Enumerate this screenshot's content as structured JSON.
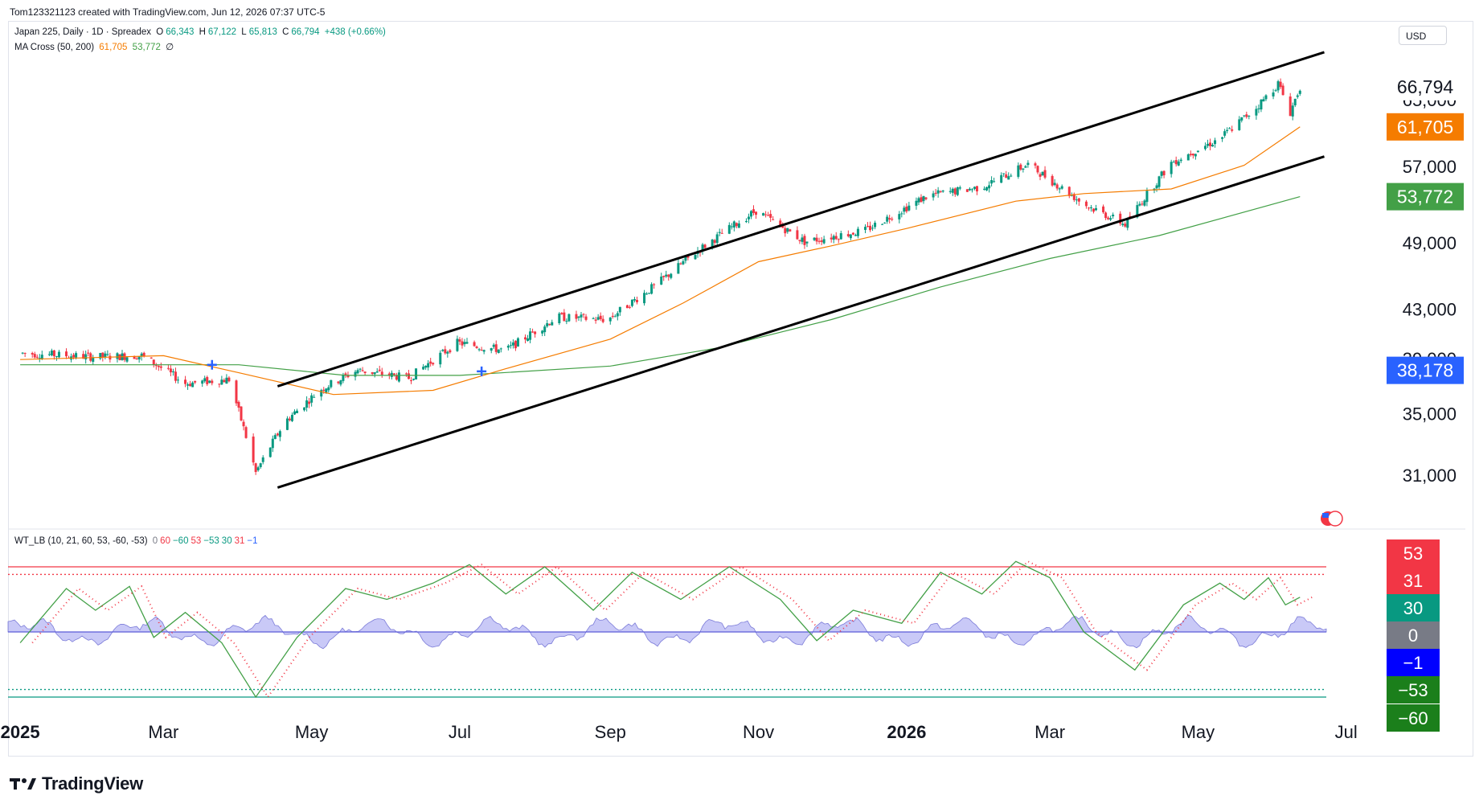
{
  "attribution": "Tom123321123 created with TradingView.com, Jun 12, 2026 07:37 UTC-5",
  "legend": {
    "symbol": "Japan 225, Daily · 1D · Spreadex",
    "o_label": "O",
    "o_value": "66,343",
    "h_label": "H",
    "h_value": "67,122",
    "l_label": "L",
    "l_value": "65,813",
    "c_label": "C",
    "c_value": "66,794",
    "change": "+438 (+0.66%)",
    "ma_title": "MA Cross (50, 200)",
    "ma_fast_value": "61,705",
    "ma_slow_value": "53,772",
    "ma_extra": "∅",
    "wt_title": "WT_LB (10, 21, 60, 53, -60, -53)",
    "wt_values": [
      "0",
      "60",
      "−60",
      "53",
      "−53",
      "30",
      "31",
      "−1"
    ],
    "wt_colors": [
      "#787b86",
      "#f23645",
      "#089981",
      "#f23645",
      "#089981",
      "#089981",
      "#f23645",
      "#2962ff"
    ]
  },
  "currency": "USD",
  "footer_brand": "TradingView",
  "colors": {
    "up": "#089981",
    "down": "#f23645",
    "ma_fast": "#f57c00",
    "ma_slow": "#43a047",
    "channel": "#000000",
    "wt1": "#43a047",
    "wt2": "#f23645",
    "histogram": "#9c9cf0",
    "ob": "#f23645",
    "os": "#089981",
    "cross_marker": "#2962ff"
  },
  "chart_data": [
    {
      "type": "candlestick",
      "title": "Japan 225, Daily",
      "x_axis_labels": [
        "2025",
        "Mar",
        "May",
        "Jul",
        "Sep",
        "Nov",
        "2026",
        "Mar",
        "May",
        "Jul"
      ],
      "y_axis_ticks": [
        31000,
        35000,
        39000,
        43000,
        49000,
        57000,
        65000
      ],
      "y_axis_tick_labels": [
        "31,000",
        "35,000",
        "39,000",
        "43,000",
        "49,000",
        "57,000",
        "65,000"
      ],
      "ylim": [
        29000,
        74000
      ],
      "scale": "log",
      "price_path": [
        [
          "2025-01-01",
          39500
        ],
        [
          "2025-02-01",
          39200
        ],
        [
          "2025-02-20",
          39300
        ],
        [
          "2025-03-10",
          37200
        ],
        [
          "2025-03-28",
          37500
        ],
        [
          "2025-04-08",
          31200
        ],
        [
          "2025-04-20",
          34500
        ],
        [
          "2025-05-05",
          36800
        ],
        [
          "2025-05-20",
          38200
        ],
        [
          "2025-06-10",
          37600
        ],
        [
          "2025-06-30",
          40300
        ],
        [
          "2025-07-20",
          39700
        ],
        [
          "2025-08-10",
          42400
        ],
        [
          "2025-08-31",
          42200
        ],
        [
          "2025-09-20",
          45200
        ],
        [
          "2025-10-08",
          48500
        ],
        [
          "2025-10-31",
          52300
        ],
        [
          "2025-11-20",
          49200
        ],
        [
          "2025-12-15",
          50300
        ],
        [
          "2026-01-10",
          53900
        ],
        [
          "2026-02-01",
          54800
        ],
        [
          "2026-02-20",
          57300
        ],
        [
          "2026-03-15",
          53000
        ],
        [
          "2026-04-01",
          50900
        ],
        [
          "2026-04-20",
          57500
        ],
        [
          "2026-05-10",
          60300
        ],
        [
          "2026-05-25",
          64100
        ],
        [
          "2026-06-03",
          67200
        ],
        [
          "2026-06-08",
          63500
        ],
        [
          "2026-06-12",
          66794
        ]
      ],
      "series": [
        {
          "name": "MA 50",
          "value_last": 61705
        },
        {
          "name": "MA 200",
          "value_last": 53772
        }
      ],
      "ma_fast_path": [
        [
          "2025-01-01",
          39000
        ],
        [
          "2025-03-01",
          39300
        ],
        [
          "2025-04-01",
          38000
        ],
        [
          "2025-05-10",
          36400
        ],
        [
          "2025-06-20",
          36700
        ],
        [
          "2025-07-20",
          38300
        ],
        [
          "2025-09-01",
          40600
        ],
        [
          "2025-10-01",
          43600
        ],
        [
          "2025-11-01",
          47300
        ],
        [
          "2025-12-01",
          48800
        ],
        [
          "2026-01-01",
          50500
        ],
        [
          "2026-02-15",
          53300
        ],
        [
          "2026-03-15",
          54100
        ],
        [
          "2026-04-20",
          54600
        ],
        [
          "2026-05-20",
          57200
        ],
        [
          "2026-06-12",
          61705
        ]
      ],
      "ma_slow_path": [
        [
          "2025-01-01",
          38600
        ],
        [
          "2025-04-01",
          38600
        ],
        [
          "2025-05-15",
          37800
        ],
        [
          "2025-07-01",
          37800
        ],
        [
          "2025-09-01",
          38500
        ],
        [
          "2025-10-15",
          39900
        ],
        [
          "2025-12-01",
          42200
        ],
        [
          "2026-01-15",
          45000
        ],
        [
          "2026-03-01",
          47600
        ],
        [
          "2026-04-15",
          49800
        ],
        [
          "2026-06-12",
          53772
        ]
      ],
      "channel_upper": [
        [
          "2025-04-17",
          37000
        ],
        [
          "2026-06-22",
          71500
        ]
      ],
      "channel_lower": [
        [
          "2025-04-17",
          30300
        ],
        [
          "2026-06-22",
          58200
        ]
      ],
      "cross_markers": [
        [
          "2025-03-21",
          38600
        ],
        [
          "2025-07-10",
          38100
        ]
      ],
      "price_labels": [
        {
          "text": "66,794",
          "value": 66794
        },
        {
          "text": "61,705",
          "value": 61705
        },
        {
          "text": "53,772",
          "value": 53772
        },
        {
          "text": "38,178",
          "value": 38178
        }
      ]
    },
    {
      "type": "line",
      "title": "WT_LB (10, 21, 60, 53, -60, -53)",
      "ylim": [
        -65,
        70
      ],
      "levels": {
        "ob1": 60,
        "ob2": 53,
        "os1": -60,
        "os2": -53
      },
      "wt1_path": [
        [
          "2025-01-01",
          -10
        ],
        [
          "2025-01-20",
          40
        ],
        [
          "2025-02-01",
          20
        ],
        [
          "2025-02-15",
          42
        ],
        [
          "2025-02-25",
          -5
        ],
        [
          "2025-03-10",
          18
        ],
        [
          "2025-03-25",
          -10
        ],
        [
          "2025-04-08",
          -60
        ],
        [
          "2025-04-25",
          -5
        ],
        [
          "2025-05-15",
          40
        ],
        [
          "2025-06-01",
          30
        ],
        [
          "2025-06-20",
          45
        ],
        [
          "2025-07-05",
          62
        ],
        [
          "2025-07-20",
          35
        ],
        [
          "2025-08-05",
          60
        ],
        [
          "2025-08-25",
          20
        ],
        [
          "2025-09-10",
          55
        ],
        [
          "2025-09-30",
          30
        ],
        [
          "2025-10-20",
          60
        ],
        [
          "2025-11-10",
          30
        ],
        [
          "2025-11-25",
          -8
        ],
        [
          "2025-12-10",
          20
        ],
        [
          "2025-12-30",
          8
        ],
        [
          "2026-01-15",
          55
        ],
        [
          "2026-02-01",
          35
        ],
        [
          "2026-02-15",
          65
        ],
        [
          "2026-03-01",
          50
        ],
        [
          "2026-03-15",
          0
        ],
        [
          "2026-04-05",
          -35
        ],
        [
          "2026-04-25",
          25
        ],
        [
          "2026-05-10",
          45
        ],
        [
          "2026-05-20",
          30
        ],
        [
          "2026-05-30",
          50
        ],
        [
          "2026-06-06",
          25
        ],
        [
          "2026-06-12",
          32
        ]
      ],
      "histogram_range": [
        -12,
        16
      ]
    }
  ],
  "right_labels_osc": [
    {
      "text": "53",
      "value": 53,
      "color": "#f23645"
    },
    {
      "text": "31",
      "value": 31,
      "color": "#f23645"
    },
    {
      "text": "30",
      "value": 30,
      "color": "#089981"
    },
    {
      "text": "0",
      "value": 0,
      "color": "#787b86"
    },
    {
      "text": "−1",
      "value": -1,
      "color": "#0000ff"
    },
    {
      "text": "−53",
      "value": -53,
      "color": "#1b7f1b"
    },
    {
      "text": "−60",
      "value": -60,
      "color": "#1b7f1b"
    }
  ]
}
